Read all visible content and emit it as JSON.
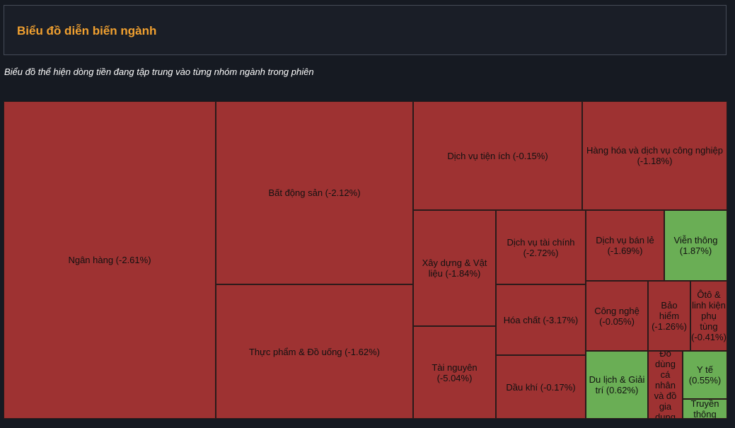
{
  "header": {
    "title": "Biểu đồ diễn biến ngành"
  },
  "subtitle": "Biểu đồ thể hiện dòng tiền đang tập trung vào từng nhóm ngành trong phiên",
  "colors": {
    "negative": "#9e3232",
    "positive": "#6aae55",
    "title": "#f0a030"
  },
  "chart_data": {
    "type": "treemap",
    "items": [
      {
        "label": "Ngân hàng (-2.61%)",
        "name": "Ngân hàng",
        "change_pct": -2.61
      },
      {
        "label": "Bất động sản (-2.12%)",
        "name": "Bất động sản",
        "change_pct": -2.12
      },
      {
        "label": "Thực phẩm & Đồ uống (-1.62%)",
        "name": "Thực phẩm & Đồ uống",
        "change_pct": -1.62
      },
      {
        "label": "Dịch vụ tiện ích (-0.15%)",
        "name": "Dịch vụ tiện ích",
        "change_pct": -0.15
      },
      {
        "label": "Hàng hóa và dịch vụ công nghiệp (-1.18%)",
        "name": "Hàng hóa và dịch vụ công nghiệp",
        "change_pct": -1.18
      },
      {
        "label": "Xây dựng & Vật liệu (-1.84%)",
        "name": "Xây dựng & Vật liệu",
        "change_pct": -1.84
      },
      {
        "label": "Tài nguyên (-5.04%)",
        "name": "Tài nguyên",
        "change_pct": -5.04
      },
      {
        "label": "Dịch vụ tài chính (-2.72%)",
        "name": "Dịch vụ tài chính",
        "change_pct": -2.72
      },
      {
        "label": "Hóa chất (-3.17%)",
        "name": "Hóa chất",
        "change_pct": -3.17
      },
      {
        "label": "Dầu khí (-0.17%)",
        "name": "Dầu khí",
        "change_pct": -0.17
      },
      {
        "label": "Dịch vụ bán lẻ (-1.69%)",
        "name": "Dịch vụ bán lẻ",
        "change_pct": -1.69
      },
      {
        "label": "Viễn thông (1.87%)",
        "name": "Viễn thông",
        "change_pct": 1.87
      },
      {
        "label": "Công nghệ (-0.05%)",
        "name": "Công nghệ",
        "change_pct": -0.05
      },
      {
        "label": "Bảo hiểm (-1.26%)",
        "name": "Bảo hiểm",
        "change_pct": -1.26
      },
      {
        "label": "Ôtô & linh kiện phụ tùng (-0.41%)",
        "name": "Ôtô & linh kiện phụ tùng",
        "change_pct": -0.41
      },
      {
        "label": "Du lịch & Giải trí (0.62%)",
        "name": "Du lịch & Giải trí",
        "change_pct": 0.62
      },
      {
        "label": "Đồ dùng cá nhân và đồ gia dụng",
        "name": "Đồ dùng cá nhân và đồ gia dụng",
        "change_pct": null
      },
      {
        "label": "Y tế (0.55%)",
        "name": "Y tế",
        "change_pct": 0.55
      },
      {
        "label": "Truyền thông",
        "name": "Truyền thông",
        "change_pct": null
      }
    ]
  }
}
